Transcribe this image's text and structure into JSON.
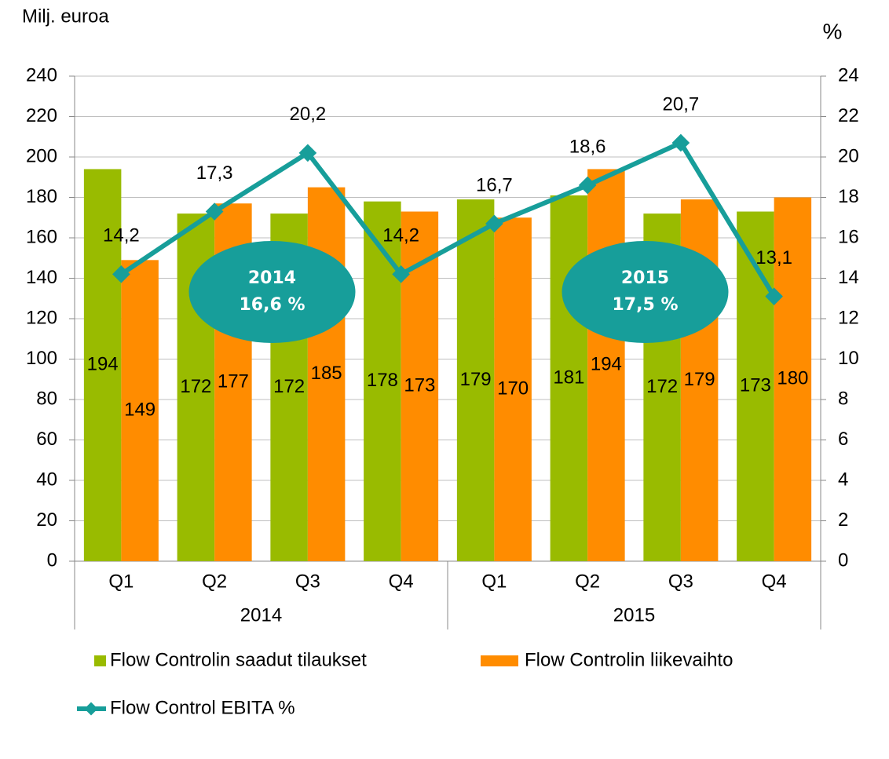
{
  "chart_data": {
    "type": "bar",
    "y_axis_title": "Milj. euroa",
    "y2_axis_title": "%",
    "categories": [
      "Q1",
      "Q2",
      "Q3",
      "Q4",
      "Q1",
      "Q2",
      "Q3",
      "Q4"
    ],
    "groups": [
      "2014",
      "2015"
    ],
    "series": [
      {
        "name": "Flow Controlin saadut tilaukset",
        "color": "#99bb00",
        "values": [
          194,
          172,
          172,
          178,
          179,
          181,
          172,
          173
        ]
      },
      {
        "name": "Flow Controlin liikevaihto",
        "color": "#ff8c00",
        "values": [
          149,
          177,
          185,
          173,
          170,
          194,
          179,
          180
        ]
      },
      {
        "name": "Flow Control EBITA %",
        "type": "line",
        "axis": "y2",
        "color": "#179e9a",
        "values": [
          14.2,
          17.3,
          20.2,
          14.2,
          16.7,
          18.6,
          20.7,
          13.1
        ],
        "value_labels": [
          "14,2",
          "17,3",
          "20,2",
          "14,2",
          "16,7",
          "18,6",
          "20,7",
          "13,1"
        ]
      }
    ],
    "annotations": [
      [
        "2014",
        "16,6 %"
      ],
      [
        "2015",
        "17,5 %"
      ]
    ],
    "ylim": [
      0,
      240
    ],
    "yticks": [
      0,
      20,
      40,
      60,
      80,
      100,
      120,
      140,
      160,
      180,
      200,
      220,
      240
    ],
    "y2lim": [
      0,
      24
    ],
    "y2ticks": [
      0,
      2,
      4,
      6,
      8,
      10,
      12,
      14,
      16,
      18,
      20,
      22,
      24
    ],
    "grid": true
  }
}
